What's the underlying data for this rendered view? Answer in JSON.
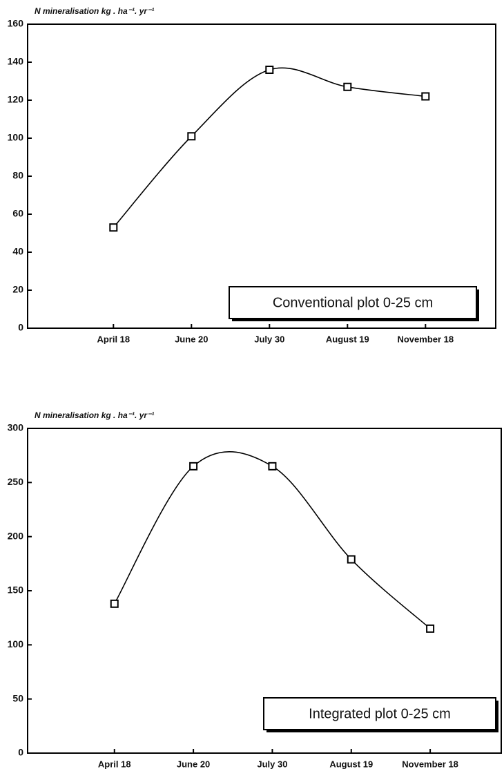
{
  "chart_data": [
    {
      "type": "line",
      "y_label": "N mineralisation kg . ha⁻¹. yr⁻¹",
      "categories": [
        "April 18",
        "June 20",
        "July 30",
        "August 19",
        "November 18"
      ],
      "values": [
        53,
        101,
        136,
        127,
        122
      ],
      "color": "#000000",
      "ylim": [
        0,
        160
      ],
      "yticks": [
        0,
        20,
        40,
        60,
        80,
        100,
        120,
        140,
        160
      ],
      "annotation": "Conventional plot 0-25 cm"
    },
    {
      "type": "line",
      "y_label": "N mineralisation kg . ha⁻¹. yr⁻¹",
      "categories": [
        "April 18",
        "June 20",
        "July 30",
        "August 19",
        "November 18"
      ],
      "values": [
        138,
        265,
        265,
        179,
        115
      ],
      "color": "#000000",
      "ylim": [
        0,
        300
      ],
      "yticks": [
        0,
        50,
        100,
        150,
        200,
        250,
        300
      ],
      "annotation": "Integrated plot 0-25 cm"
    }
  ]
}
